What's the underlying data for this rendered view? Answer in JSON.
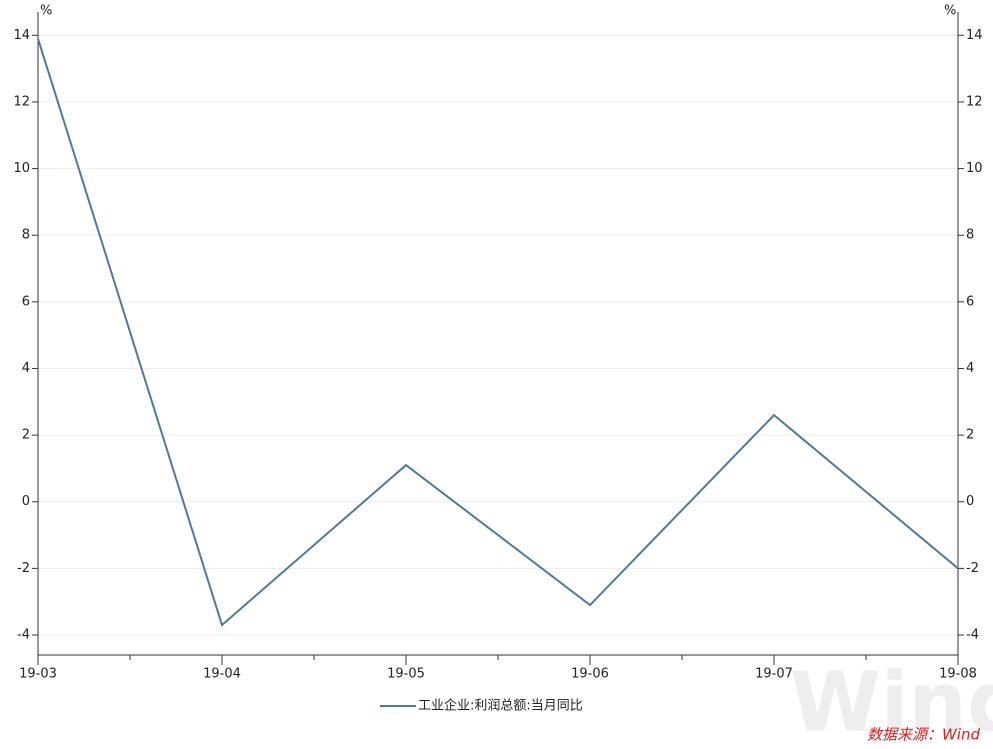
{
  "chart_data": {
    "type": "line",
    "categories": [
      "19-03",
      "19-04",
      "19-05",
      "19-06",
      "19-07",
      "19-08"
    ],
    "series": [
      {
        "name": "工业企业:利润总额:当月同比",
        "color": "#4f7a99",
        "values": [
          13.9,
          -3.7,
          1.1,
          -3.1,
          2.6,
          -2.0
        ]
      }
    ],
    "ylim": [
      -4.6,
      14.7
    ],
    "yticks": [
      -4,
      -2,
      0,
      2,
      4,
      6,
      8,
      10,
      12,
      14
    ],
    "y2lim": [
      -4.6,
      14.7
    ],
    "y2ticks": [
      -4,
      -2,
      0,
      2,
      4,
      6,
      8,
      10,
      12,
      14
    ],
    "y_unit": "%",
    "y2_unit": "%",
    "grid": true,
    "source": "数据来源：Wind",
    "watermark": "Wind"
  }
}
